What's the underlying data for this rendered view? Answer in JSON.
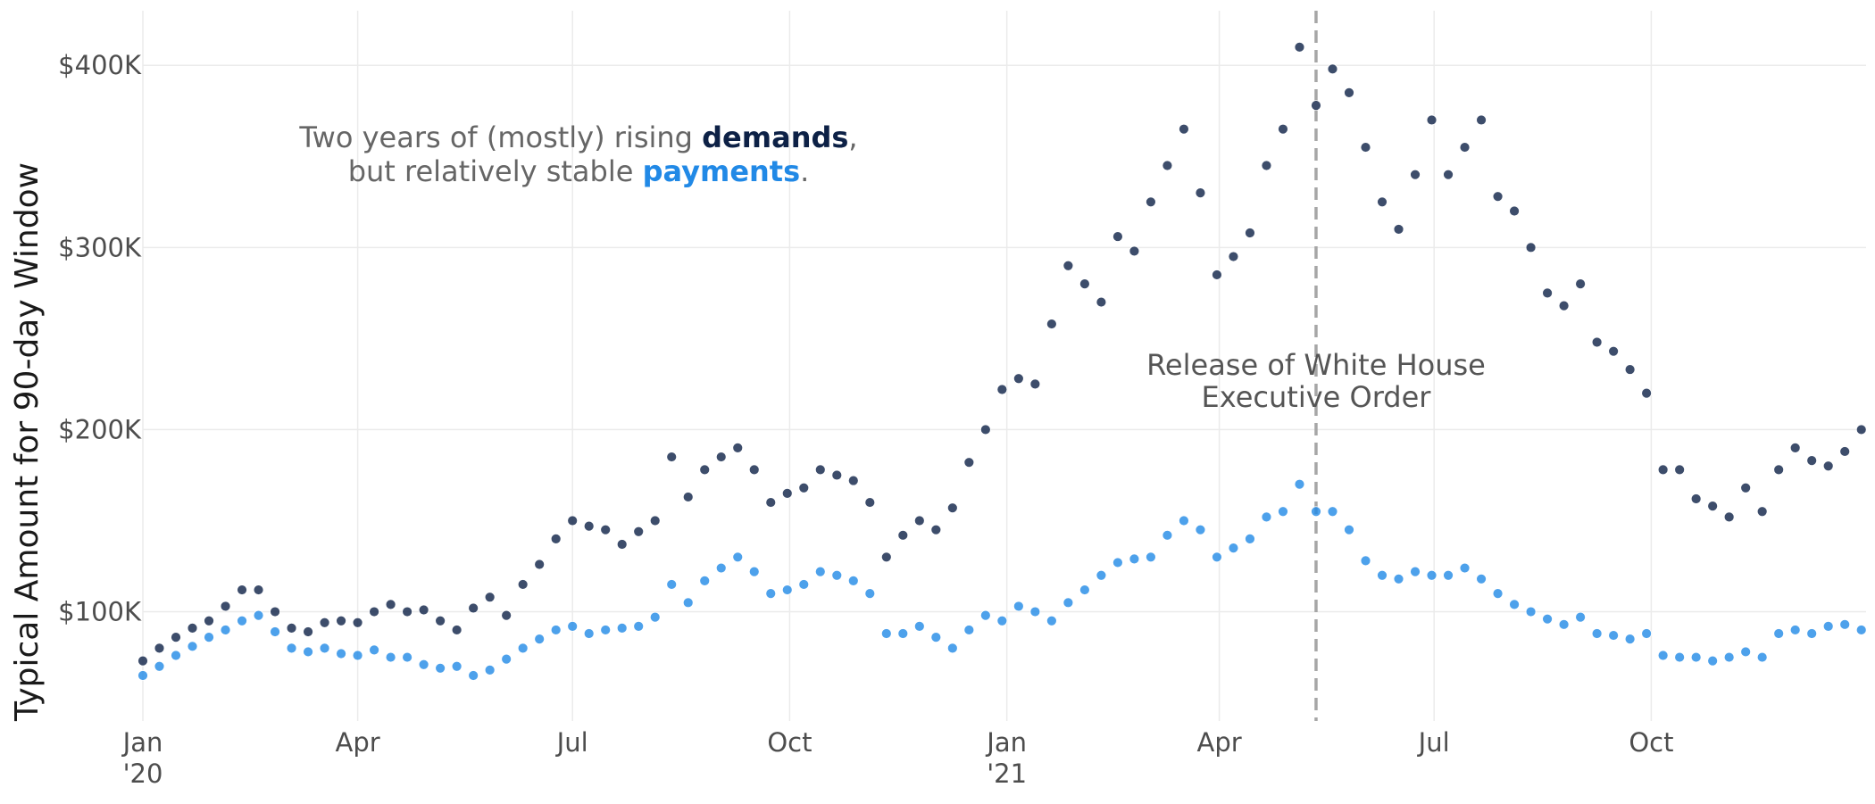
{
  "chart_data": {
    "type": "scatter",
    "title_line1": {
      "before": "Two years of (mostly) rising ",
      "highlight": "demands",
      "after": ","
    },
    "title_line2": {
      "before": "but relatively stable ",
      "highlight": "payments",
      "after": "."
    },
    "ylabel": "Typical Amount for 90-day Window",
    "xlabel": "",
    "x_range": [
      "2020-01-01",
      "2021-12-31"
    ],
    "ylim": [
      40000,
      430000
    ],
    "y_ticks": [
      {
        "value": 100000,
        "label": "$100K"
      },
      {
        "value": 200000,
        "label": "$200K"
      },
      {
        "value": 300000,
        "label": "$300K"
      },
      {
        "value": 400000,
        "label": "$400K"
      }
    ],
    "x_ticks": [
      {
        "date": "2020-01-01",
        "label": "Jan",
        "label2": "'20"
      },
      {
        "date": "2020-04-01",
        "label": "Apr",
        "label2": ""
      },
      {
        "date": "2020-07-01",
        "label": "Jul",
        "label2": ""
      },
      {
        "date": "2020-10-01",
        "label": "Oct",
        "label2": ""
      },
      {
        "date": "2021-01-01",
        "label": "Jan",
        "label2": "'21"
      },
      {
        "date": "2021-04-01",
        "label": "Apr",
        "label2": ""
      },
      {
        "date": "2021-07-01",
        "label": "Jul",
        "label2": ""
      },
      {
        "date": "2021-10-01",
        "label": "Oct",
        "label2": ""
      }
    ],
    "grid": true,
    "legend": "none",
    "annotation": {
      "date": "2021-05-12",
      "line1": "Release of White House",
      "line2": "Executive Order"
    },
    "series": [
      {
        "name": "demands",
        "color": "#0d2146",
        "points": [
          [
            "2020-01-01",
            73000
          ],
          [
            "2020-01-08",
            80000
          ],
          [
            "2020-01-15",
            86000
          ],
          [
            "2020-01-22",
            91000
          ],
          [
            "2020-01-29",
            95000
          ],
          [
            "2020-02-05",
            103000
          ],
          [
            "2020-02-12",
            112000
          ],
          [
            "2020-02-19",
            112000
          ],
          [
            "2020-02-26",
            100000
          ],
          [
            "2020-03-04",
            91000
          ],
          [
            "2020-03-11",
            89000
          ],
          [
            "2020-03-18",
            94000
          ],
          [
            "2020-03-25",
            95000
          ],
          [
            "2020-04-01",
            94000
          ],
          [
            "2020-04-08",
            100000
          ],
          [
            "2020-04-15",
            104000
          ],
          [
            "2020-04-22",
            100000
          ],
          [
            "2020-04-29",
            101000
          ],
          [
            "2020-05-06",
            95000
          ],
          [
            "2020-05-13",
            90000
          ],
          [
            "2020-05-20",
            102000
          ],
          [
            "2020-05-27",
            108000
          ],
          [
            "2020-06-03",
            98000
          ],
          [
            "2020-06-10",
            115000
          ],
          [
            "2020-06-17",
            126000
          ],
          [
            "2020-06-24",
            140000
          ],
          [
            "2020-07-01",
            150000
          ],
          [
            "2020-07-08",
            147000
          ],
          [
            "2020-07-15",
            145000
          ],
          [
            "2020-07-22",
            137000
          ],
          [
            "2020-07-29",
            144000
          ],
          [
            "2020-08-05",
            150000
          ],
          [
            "2020-08-12",
            185000
          ],
          [
            "2020-08-19",
            163000
          ],
          [
            "2020-08-26",
            178000
          ],
          [
            "2020-09-02",
            185000
          ],
          [
            "2020-09-09",
            190000
          ],
          [
            "2020-09-16",
            178000
          ],
          [
            "2020-09-23",
            160000
          ],
          [
            "2020-09-30",
            165000
          ],
          [
            "2020-10-07",
            168000
          ],
          [
            "2020-10-14",
            178000
          ],
          [
            "2020-10-21",
            175000
          ],
          [
            "2020-10-28",
            172000
          ],
          [
            "2020-11-04",
            160000
          ],
          [
            "2020-11-11",
            130000
          ],
          [
            "2020-11-18",
            142000
          ],
          [
            "2020-11-25",
            150000
          ],
          [
            "2020-12-02",
            145000
          ],
          [
            "2020-12-09",
            157000
          ],
          [
            "2020-12-16",
            182000
          ],
          [
            "2020-12-23",
            200000
          ],
          [
            "2020-12-30",
            222000
          ],
          [
            "2021-01-06",
            228000
          ],
          [
            "2021-01-13",
            225000
          ],
          [
            "2021-01-20",
            258000
          ],
          [
            "2021-01-27",
            290000
          ],
          [
            "2021-02-03",
            280000
          ],
          [
            "2021-02-10",
            270000
          ],
          [
            "2021-02-17",
            306000
          ],
          [
            "2021-02-24",
            298000
          ],
          [
            "2021-03-03",
            325000
          ],
          [
            "2021-03-10",
            345000
          ],
          [
            "2021-03-17",
            365000
          ],
          [
            "2021-03-24",
            330000
          ],
          [
            "2021-03-31",
            285000
          ],
          [
            "2021-04-07",
            295000
          ],
          [
            "2021-04-14",
            308000
          ],
          [
            "2021-04-21",
            345000
          ],
          [
            "2021-04-28",
            365000
          ],
          [
            "2021-05-05",
            410000
          ],
          [
            "2021-05-12",
            378000
          ],
          [
            "2021-05-19",
            398000
          ],
          [
            "2021-05-26",
            385000
          ],
          [
            "2021-06-02",
            355000
          ],
          [
            "2021-06-09",
            325000
          ],
          [
            "2021-06-16",
            310000
          ],
          [
            "2021-06-23",
            340000
          ],
          [
            "2021-06-30",
            370000
          ],
          [
            "2021-07-07",
            340000
          ],
          [
            "2021-07-14",
            355000
          ],
          [
            "2021-07-21",
            370000
          ],
          [
            "2021-07-28",
            328000
          ],
          [
            "2021-08-04",
            320000
          ],
          [
            "2021-08-11",
            300000
          ],
          [
            "2021-08-18",
            275000
          ],
          [
            "2021-08-25",
            268000
          ],
          [
            "2021-09-01",
            280000
          ],
          [
            "2021-09-08",
            248000
          ],
          [
            "2021-09-15",
            243000
          ],
          [
            "2021-09-22",
            233000
          ],
          [
            "2021-09-29",
            220000
          ],
          [
            "2021-10-06",
            178000
          ],
          [
            "2021-10-13",
            178000
          ],
          [
            "2021-10-20",
            162000
          ],
          [
            "2021-10-27",
            158000
          ],
          [
            "2021-11-03",
            152000
          ],
          [
            "2021-11-10",
            168000
          ],
          [
            "2021-11-17",
            155000
          ],
          [
            "2021-11-24",
            178000
          ],
          [
            "2021-12-01",
            190000
          ],
          [
            "2021-12-08",
            183000
          ],
          [
            "2021-12-15",
            180000
          ],
          [
            "2021-12-22",
            188000
          ],
          [
            "2021-12-29",
            200000
          ]
        ]
      },
      {
        "name": "payments",
        "color": "#2189e6",
        "points": [
          [
            "2020-01-01",
            65000
          ],
          [
            "2020-01-08",
            70000
          ],
          [
            "2020-01-15",
            76000
          ],
          [
            "2020-01-22",
            81000
          ],
          [
            "2020-01-29",
            86000
          ],
          [
            "2020-02-05",
            90000
          ],
          [
            "2020-02-12",
            95000
          ],
          [
            "2020-02-19",
            98000
          ],
          [
            "2020-02-26",
            89000
          ],
          [
            "2020-03-04",
            80000
          ],
          [
            "2020-03-11",
            78000
          ],
          [
            "2020-03-18",
            80000
          ],
          [
            "2020-03-25",
            77000
          ],
          [
            "2020-04-01",
            76000
          ],
          [
            "2020-04-08",
            79000
          ],
          [
            "2020-04-15",
            75000
          ],
          [
            "2020-04-22",
            75000
          ],
          [
            "2020-04-29",
            71000
          ],
          [
            "2020-05-06",
            69000
          ],
          [
            "2020-05-13",
            70000
          ],
          [
            "2020-05-20",
            65000
          ],
          [
            "2020-05-27",
            68000
          ],
          [
            "2020-06-03",
            74000
          ],
          [
            "2020-06-10",
            80000
          ],
          [
            "2020-06-17",
            85000
          ],
          [
            "2020-06-24",
            90000
          ],
          [
            "2020-07-01",
            92000
          ],
          [
            "2020-07-08",
            88000
          ],
          [
            "2020-07-15",
            90000
          ],
          [
            "2020-07-22",
            91000
          ],
          [
            "2020-07-29",
            92000
          ],
          [
            "2020-08-05",
            97000
          ],
          [
            "2020-08-12",
            115000
          ],
          [
            "2020-08-19",
            105000
          ],
          [
            "2020-08-26",
            117000
          ],
          [
            "2020-09-02",
            124000
          ],
          [
            "2020-09-09",
            130000
          ],
          [
            "2020-09-16",
            122000
          ],
          [
            "2020-09-23",
            110000
          ],
          [
            "2020-09-30",
            112000
          ],
          [
            "2020-10-07",
            115000
          ],
          [
            "2020-10-14",
            122000
          ],
          [
            "2020-10-21",
            120000
          ],
          [
            "2020-10-28",
            117000
          ],
          [
            "2020-11-04",
            110000
          ],
          [
            "2020-11-11",
            88000
          ],
          [
            "2020-11-18",
            88000
          ],
          [
            "2020-11-25",
            92000
          ],
          [
            "2020-12-02",
            86000
          ],
          [
            "2020-12-09",
            80000
          ],
          [
            "2020-12-16",
            90000
          ],
          [
            "2020-12-23",
            98000
          ],
          [
            "2020-12-30",
            95000
          ],
          [
            "2021-01-06",
            103000
          ],
          [
            "2021-01-13",
            100000
          ],
          [
            "2021-01-20",
            95000
          ],
          [
            "2021-01-27",
            105000
          ],
          [
            "2021-02-03",
            112000
          ],
          [
            "2021-02-10",
            120000
          ],
          [
            "2021-02-17",
            127000
          ],
          [
            "2021-02-24",
            129000
          ],
          [
            "2021-03-03",
            130000
          ],
          [
            "2021-03-10",
            142000
          ],
          [
            "2021-03-17",
            150000
          ],
          [
            "2021-03-24",
            145000
          ],
          [
            "2021-03-31",
            130000
          ],
          [
            "2021-04-07",
            135000
          ],
          [
            "2021-04-14",
            140000
          ],
          [
            "2021-04-21",
            152000
          ],
          [
            "2021-04-28",
            155000
          ],
          [
            "2021-05-05",
            170000
          ],
          [
            "2021-05-12",
            155000
          ],
          [
            "2021-05-19",
            155000
          ],
          [
            "2021-05-26",
            145000
          ],
          [
            "2021-06-02",
            128000
          ],
          [
            "2021-06-09",
            120000
          ],
          [
            "2021-06-16",
            118000
          ],
          [
            "2021-06-23",
            122000
          ],
          [
            "2021-06-30",
            120000
          ],
          [
            "2021-07-07",
            120000
          ],
          [
            "2021-07-14",
            124000
          ],
          [
            "2021-07-21",
            118000
          ],
          [
            "2021-07-28",
            110000
          ],
          [
            "2021-08-04",
            104000
          ],
          [
            "2021-08-11",
            100000
          ],
          [
            "2021-08-18",
            96000
          ],
          [
            "2021-08-25",
            93000
          ],
          [
            "2021-09-01",
            97000
          ],
          [
            "2021-09-08",
            88000
          ],
          [
            "2021-09-15",
            87000
          ],
          [
            "2021-09-22",
            85000
          ],
          [
            "2021-09-29",
            88000
          ],
          [
            "2021-10-06",
            76000
          ],
          [
            "2021-10-13",
            75000
          ],
          [
            "2021-10-20",
            75000
          ],
          [
            "2021-10-27",
            73000
          ],
          [
            "2021-11-03",
            75000
          ],
          [
            "2021-11-10",
            78000
          ],
          [
            "2021-11-17",
            75000
          ],
          [
            "2021-11-24",
            88000
          ],
          [
            "2021-12-01",
            90000
          ],
          [
            "2021-12-08",
            88000
          ],
          [
            "2021-12-15",
            92000
          ],
          [
            "2021-12-22",
            93000
          ],
          [
            "2021-12-29",
            90000
          ]
        ]
      }
    ]
  }
}
